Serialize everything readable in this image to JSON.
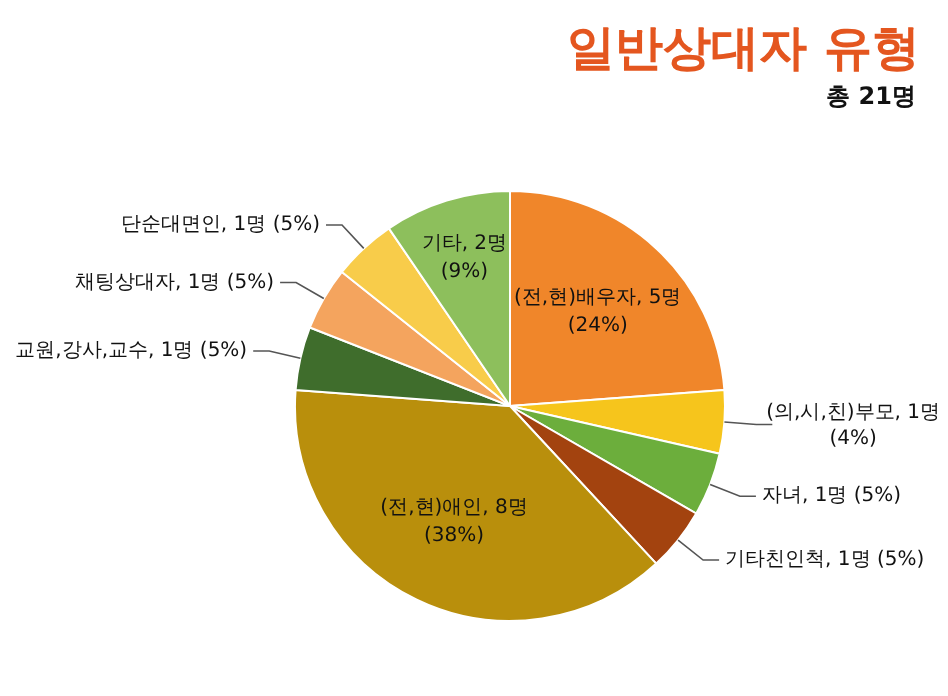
{
  "chart_data": {
    "type": "pie",
    "title": "일반상대자 유형",
    "subtitle": "총 21명",
    "categories": [
      "(전,현)배우자",
      "(의,시,친)부모",
      "자녀",
      "기타친인척",
      "(전,현)애인",
      "교원,강사,교수",
      "채팅상대자",
      "단순대면인",
      "기타"
    ],
    "values": [
      5,
      1,
      1,
      1,
      8,
      1,
      1,
      1,
      2
    ],
    "value_labels": [
      "5명 (24%)",
      "1명 (4%)",
      "1명 (5%)",
      "1명 (5%)",
      "8명 (38%)",
      "1명 (5%)",
      "1명 (5%)",
      "1명 (5%)",
      "2명 (9%)"
    ],
    "colors": [
      "#f0862a",
      "#f6c51c",
      "#6cae3c",
      "#a3430f",
      "#b98f0c",
      "#3f6d2c",
      "#f4a45e",
      "#f8cc4a",
      "#8dbf5c"
    ],
    "legend": false
  }
}
